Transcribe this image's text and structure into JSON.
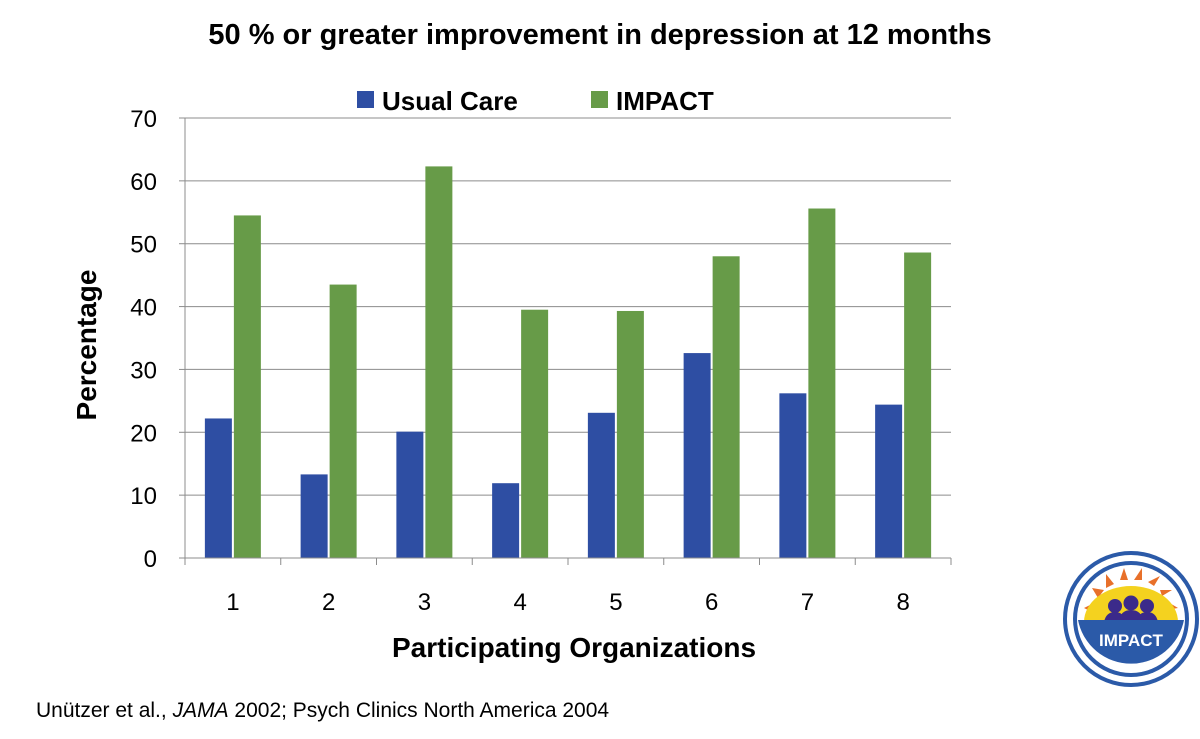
{
  "chart_data": {
    "type": "bar",
    "title": "50 % or greater improvement in depression at 12 months",
    "xlabel": "Participating Organizations",
    "ylabel": "Percentage",
    "categories": [
      "1",
      "2",
      "3",
      "4",
      "5",
      "6",
      "7",
      "8"
    ],
    "series": [
      {
        "name": "Usual Care",
        "color": "#2e4ea3",
        "values": [
          22.2,
          13.3,
          20.1,
          11.9,
          23.1,
          32.6,
          26.2,
          24.4
        ]
      },
      {
        "name": "IMPACT",
        "color": "#679b48",
        "values": [
          54.5,
          43.5,
          62.3,
          39.5,
          39.3,
          48.0,
          55.6,
          48.6
        ]
      }
    ],
    "ylim": [
      0,
      70
    ],
    "yticks": [
      0,
      10,
      20,
      30,
      40,
      50,
      60,
      70
    ],
    "grid": true,
    "legend_position": "top"
  },
  "citation": {
    "authors": "Unützer et al., ",
    "journal": "JAMA",
    "rest": " 2002; Psych Clinics North America 2004"
  },
  "logo": {
    "text": "IMPACT",
    "colors": {
      "ring": "#2b5aa8",
      "sun": "#f4d21f",
      "rays": "#e8702a",
      "figures": "#3b2a8a"
    }
  }
}
